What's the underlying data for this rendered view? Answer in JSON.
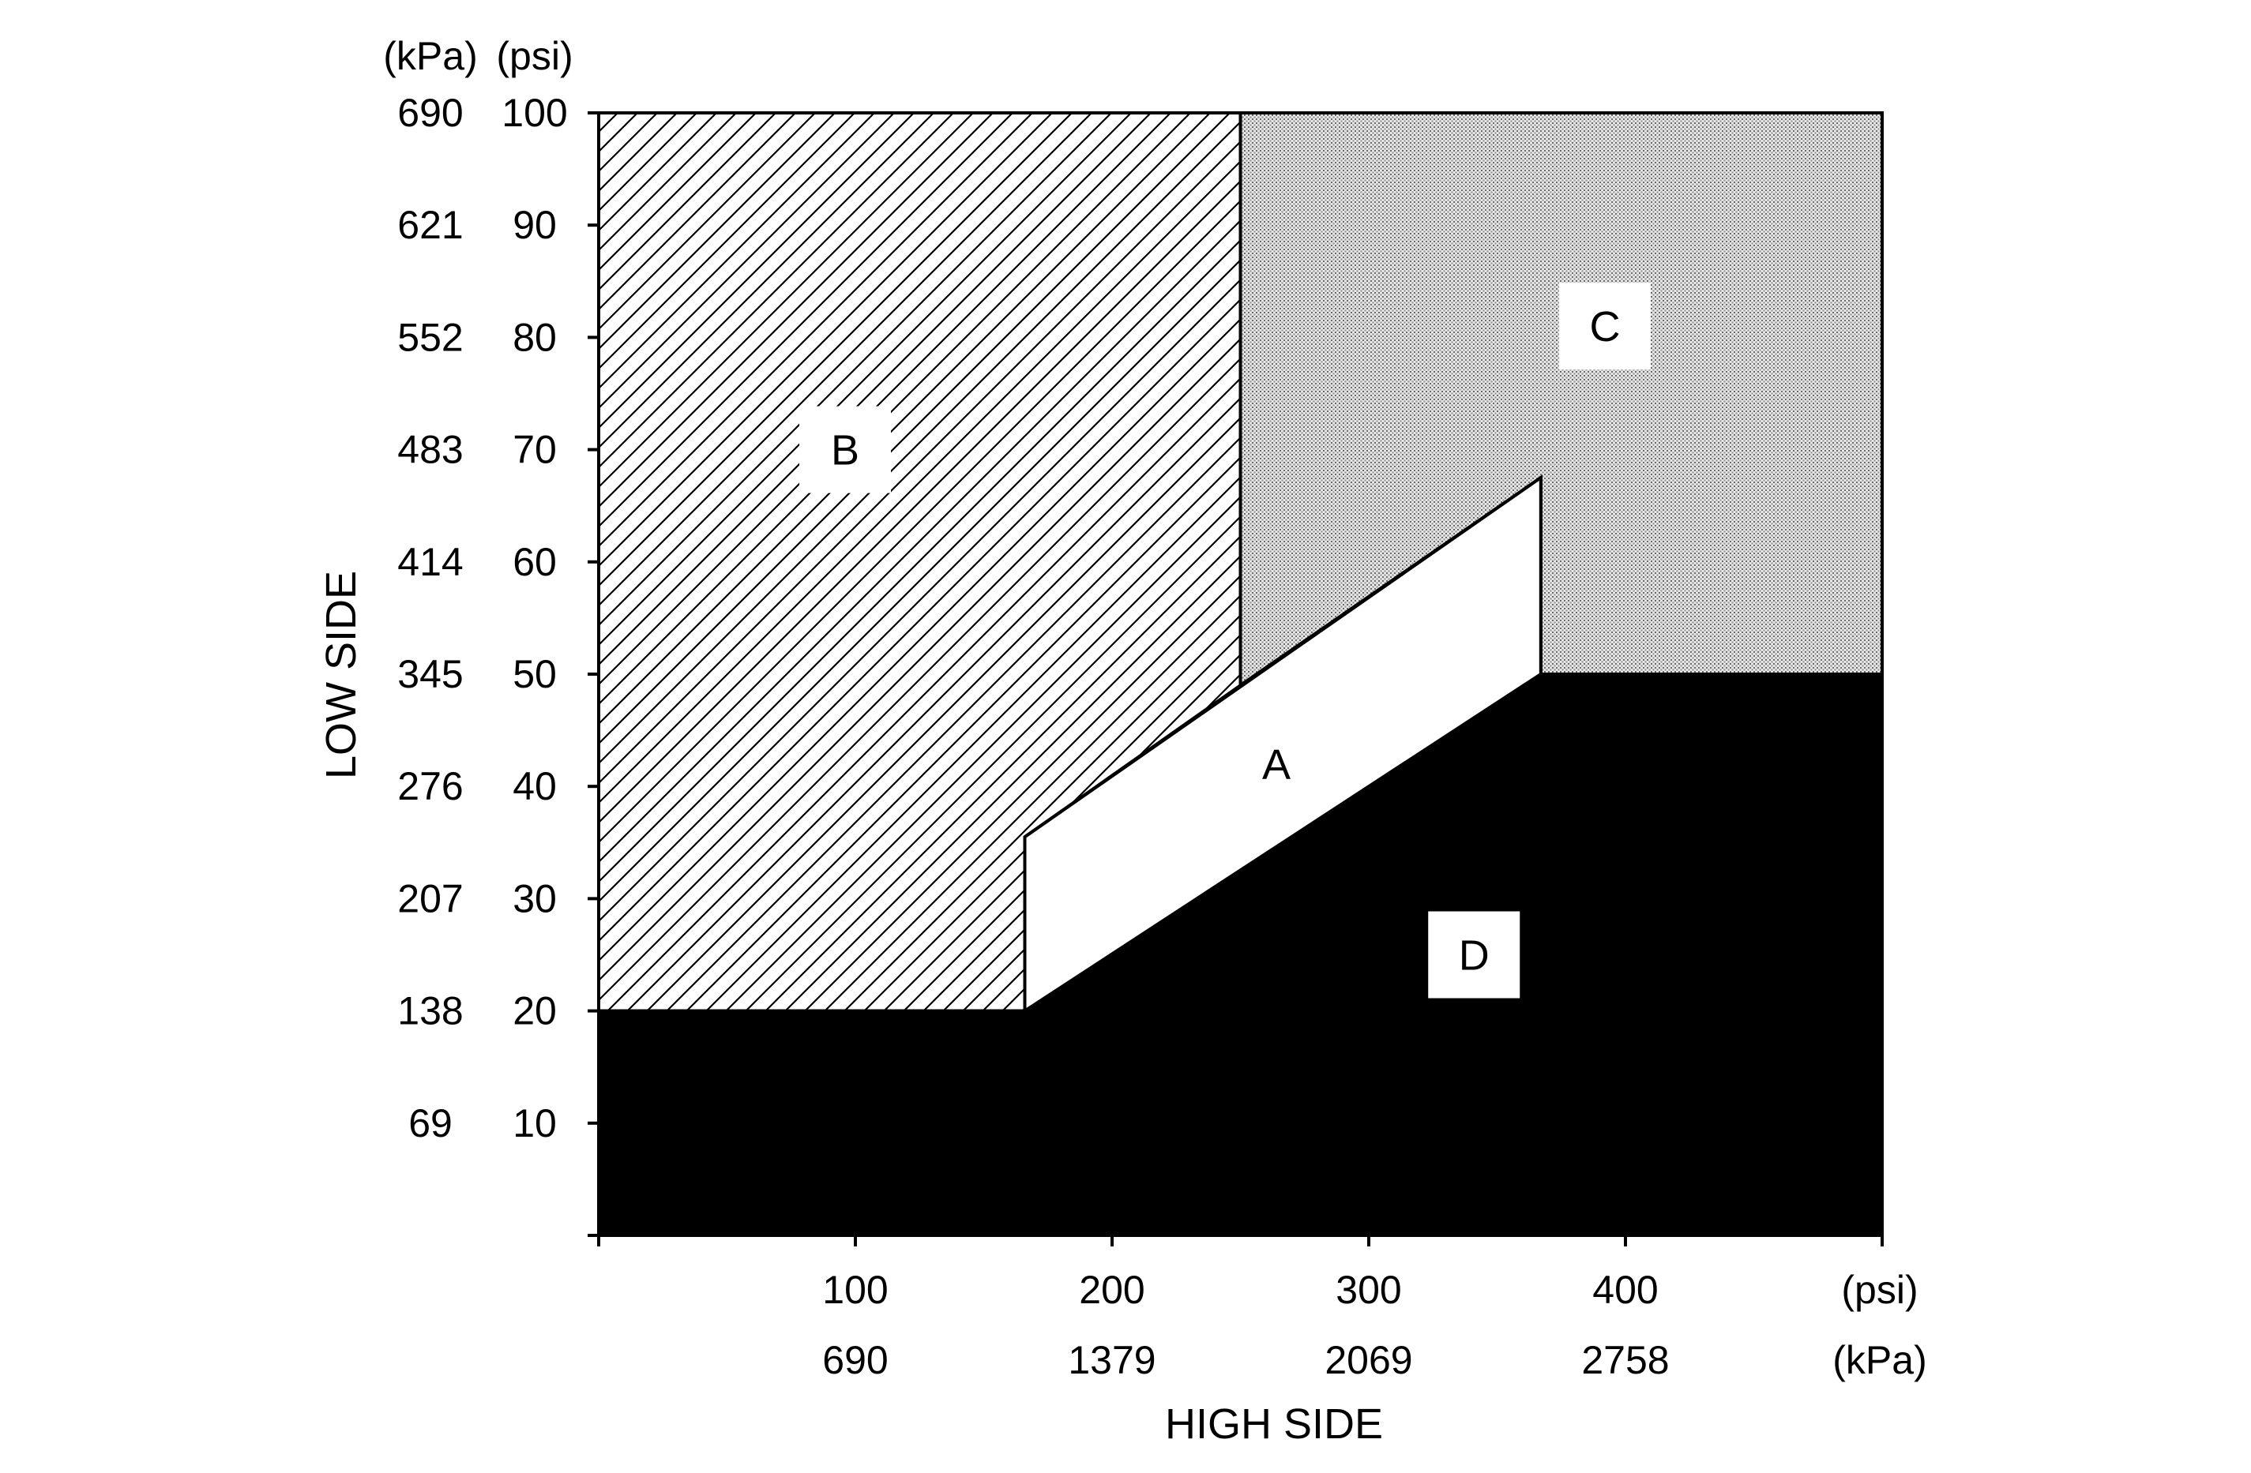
{
  "chart_data": {
    "type": "area",
    "title": "",
    "xlabel": "HIGH SIDE",
    "ylabel": "LOW SIDE",
    "xlim": [
      0,
      500
    ],
    "ylim": [
      0,
      100
    ],
    "x_ticks": [
      0,
      100,
      200,
      300,
      400,
      500
    ],
    "x_tick_labels_psi": [
      "100",
      "200",
      "300",
      "400"
    ],
    "x_tick_labels_kpa": [
      "690",
      "1379",
      "2069",
      "2758"
    ],
    "x_unit_psi": "(psi)",
    "x_unit_kpa": "(kPa)",
    "y_ticks": [
      0,
      10,
      20,
      30,
      40,
      50,
      60,
      70,
      80,
      90,
      100
    ],
    "y_tick_labels_psi": [
      "10",
      "20",
      "30",
      "40",
      "50",
      "60",
      "70",
      "80",
      "90",
      "100"
    ],
    "y_tick_labels_kpa": [
      "69",
      "138",
      "207",
      "276",
      "345",
      "414",
      "483",
      "552",
      "621",
      "690"
    ],
    "y_unit_kpa": "(kPa)",
    "y_unit_psi": "(psi)",
    "grid": false,
    "regions": [
      {
        "name": "A",
        "fill": "white",
        "polygon": [
          [
            166,
            20
          ],
          [
            166,
            35.5
          ],
          [
            367,
            67.5
          ],
          [
            367,
            50
          ],
          [
            166,
            20
          ]
        ]
      },
      {
        "name": "B",
        "fill": "diagonal-hatch",
        "polygon": [
          [
            0,
            20
          ],
          [
            0,
            100
          ],
          [
            250,
            100
          ],
          [
            250,
            49
          ],
          [
            166,
            35.5
          ],
          [
            166,
            20
          ]
        ]
      },
      {
        "name": "C",
        "fill": "stipple",
        "polygon": [
          [
            250,
            100
          ],
          [
            500,
            100
          ],
          [
            500,
            50
          ],
          [
            367,
            50
          ],
          [
            367,
            67.5
          ],
          [
            250,
            49
          ]
        ]
      },
      {
        "name": "D",
        "fill": "black",
        "polygon": [
          [
            0,
            0
          ],
          [
            0,
            20
          ],
          [
            166,
            20
          ],
          [
            367,
            50
          ],
          [
            500,
            50
          ],
          [
            500,
            0
          ]
        ]
      }
    ],
    "region_labels": [
      {
        "name": "A",
        "x": 264,
        "y": 42
      },
      {
        "name": "B",
        "x": 96,
        "y": 70
      },
      {
        "name": "C",
        "x": 392,
        "y": 81
      },
      {
        "name": "D",
        "x": 341,
        "y": 25
      }
    ],
    "colors": {
      "fill_dark": "#000000",
      "fill_light": "#ffffff",
      "stipple": "#8c8c8c"
    }
  }
}
